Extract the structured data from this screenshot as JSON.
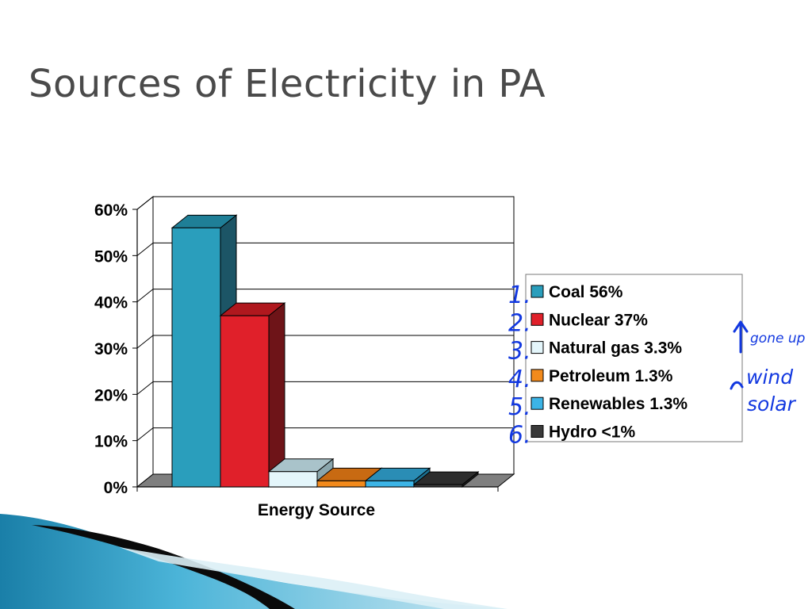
{
  "slide": {
    "title": "Sources of Electricity in PA"
  },
  "chart_data": {
    "type": "bar",
    "style": "3d-clustered",
    "xlabel": "Energy Source",
    "ylim": [
      0,
      0.6
    ],
    "yticks": [
      "0%",
      "10%",
      "20%",
      "30%",
      "40%",
      "50%",
      "60%"
    ],
    "grid": true,
    "legend_position": "right",
    "series": [
      {
        "name": "Coal  56%",
        "value": 0.56,
        "color": "#2a9ebc",
        "side": "#1c5566",
        "top": "#1f7f97"
      },
      {
        "name": "Nuclear  37%",
        "value": 0.37,
        "color": "#e0202a",
        "side": "#6e1418",
        "top": "#b0181e"
      },
      {
        "name": "Natural gas  3.3%",
        "value": 0.033,
        "color": "#e4f6fb",
        "side": "#8aa6ad",
        "top": "#a9c3ca"
      },
      {
        "name": "Petroleum  1.3%",
        "value": 0.013,
        "color": "#f28a1c",
        "side": "#9c5208",
        "top": "#c86a12"
      },
      {
        "name": "Renewables  1.3%",
        "value": 0.013,
        "color": "#3cb4e6",
        "side": "#1c6f8f",
        "top": "#2a8db5"
      },
      {
        "name": "Hydro  <1%",
        "value": 0.005,
        "color": "#3a3a3a",
        "side": "#1e1e1e",
        "top": "#2c2c2c"
      }
    ]
  },
  "annotations": {
    "numbers": [
      "1.",
      "2.",
      "3.",
      "4.",
      "5.",
      "6."
    ],
    "gone_up": "gone up",
    "wind": "wind",
    "solar": "solar"
  }
}
